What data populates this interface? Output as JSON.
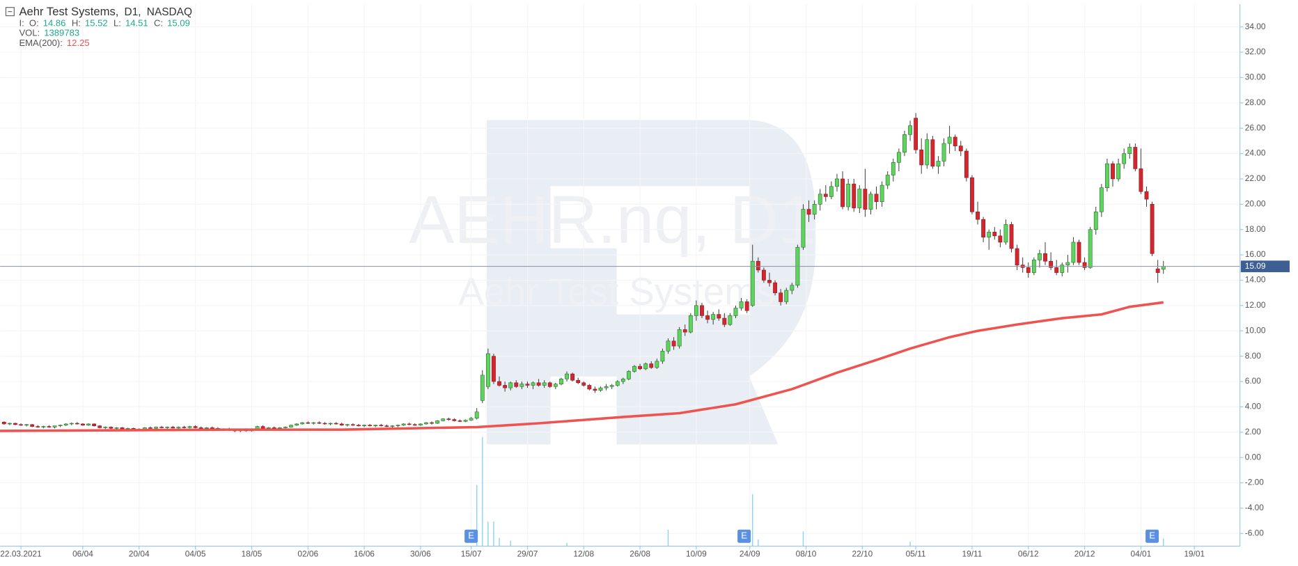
{
  "chart_data": {
    "type": "candlestick",
    "title": "Aehr Test Systems,",
    "timeframe": "D1,",
    "exchange": "NASDAQ",
    "header": {
      "prefix": "I:",
      "labels": [
        "O:",
        "H:",
        "L:",
        "C:"
      ]
    },
    "watermark": [
      "AEHR.nq, D1",
      "Aehr Test Systems"
    ],
    "xlim": [
      -0.7,
      219.6
    ],
    "ylim": [
      -7,
      35.8
    ],
    "yticks": [
      {
        "value": -6,
        "label": "-6.00"
      },
      {
        "value": -4,
        "label": "-4.00"
      },
      {
        "value": -2,
        "label": "-2.00"
      },
      {
        "value": 0,
        "label": "0.00"
      },
      {
        "value": 2,
        "label": "2.00"
      },
      {
        "value": 4,
        "label": "4.00"
      },
      {
        "value": 6,
        "label": "6.00"
      },
      {
        "value": 8,
        "label": "8.00"
      },
      {
        "value": 10,
        "label": "10.00"
      },
      {
        "value": 12,
        "label": "12.00"
      },
      {
        "value": 14,
        "label": "14.00"
      },
      {
        "value": 16,
        "label": "16.00"
      },
      {
        "value": 18,
        "label": "18.00"
      },
      {
        "value": 20,
        "label": "20.00"
      },
      {
        "value": 22,
        "label": "22.00"
      },
      {
        "value": 24,
        "label": "24.00"
      },
      {
        "value": 26,
        "label": "26.00"
      },
      {
        "value": 28,
        "label": "28.00"
      },
      {
        "value": 30,
        "label": "30.00"
      },
      {
        "value": 32,
        "label": "32.00"
      },
      {
        "value": 34,
        "label": "34.00"
      }
    ],
    "xticks": [
      {
        "value": 3,
        "label": "22.03.2021"
      },
      {
        "value": 14,
        "label": "06/04"
      },
      {
        "value": 24,
        "label": "20/04"
      },
      {
        "value": 34,
        "label": "04/05"
      },
      {
        "value": 44,
        "label": "18/05"
      },
      {
        "value": 54,
        "label": "02/06"
      },
      {
        "value": 64,
        "label": "16/06"
      },
      {
        "value": 74,
        "label": "30/06"
      },
      {
        "value": 83,
        "label": "15/07"
      },
      {
        "value": 93,
        "label": "29/07"
      },
      {
        "value": 103,
        "label": "12/08"
      },
      {
        "value": 113,
        "label": "26/08"
      },
      {
        "value": 123,
        "label": "10/09"
      },
      {
        "value": 132.5,
        "label": "24/09"
      },
      {
        "value": 142.5,
        "label": "08/10"
      },
      {
        "value": 152.5,
        "label": "22/10"
      },
      {
        "value": 162,
        "label": "05/11"
      },
      {
        "value": 172,
        "label": "19/11"
      },
      {
        "value": 182,
        "label": "06/12"
      },
      {
        "value": 192,
        "label": "20/12"
      },
      {
        "value": 202,
        "label": "04/01"
      },
      {
        "value": 211.5,
        "label": "19/01"
      }
    ],
    "grid": true,
    "up_color": "#5ed45e",
    "down_color": "#d3262e",
    "price_line_color": "#8a90a0",
    "price_label_color": "#3d5f93",
    "ohlc": [
      [
        2.8,
        2.85,
        2.6,
        2.65
      ],
      [
        2.65,
        2.75,
        2.55,
        2.7
      ],
      [
        2.7,
        2.75,
        2.55,
        2.6
      ],
      [
        2.6,
        2.7,
        2.5,
        2.55
      ],
      [
        2.55,
        2.65,
        2.45,
        2.6
      ],
      [
        2.6,
        2.65,
        2.4,
        2.45
      ],
      [
        2.45,
        2.55,
        2.35,
        2.4
      ],
      [
        2.4,
        2.5,
        2.3,
        2.45
      ],
      [
        2.45,
        2.55,
        2.35,
        2.4
      ],
      [
        2.4,
        2.5,
        2.3,
        2.5
      ],
      [
        2.5,
        2.6,
        2.4,
        2.55
      ],
      [
        2.55,
        2.7,
        2.5,
        2.65
      ],
      [
        2.65,
        2.75,
        2.55,
        2.7
      ],
      [
        2.7,
        2.8,
        2.6,
        2.65
      ],
      [
        2.65,
        2.7,
        2.5,
        2.55
      ],
      [
        2.55,
        2.7,
        2.5,
        2.65
      ],
      [
        2.65,
        2.7,
        2.45,
        2.5
      ],
      [
        2.5,
        2.55,
        2.3,
        2.35
      ],
      [
        2.35,
        2.45,
        2.25,
        2.4
      ],
      [
        2.4,
        2.45,
        2.25,
        2.3
      ],
      [
        2.3,
        2.4,
        2.2,
        2.35
      ],
      [
        2.35,
        2.4,
        2.2,
        2.25
      ],
      [
        2.25,
        2.35,
        2.15,
        2.3
      ],
      [
        2.3,
        2.35,
        2.15,
        2.2
      ],
      [
        2.2,
        2.3,
        2.1,
        2.25
      ],
      [
        2.25,
        2.4,
        2.2,
        2.35
      ],
      [
        2.35,
        2.45,
        2.25,
        2.3
      ],
      [
        2.3,
        2.45,
        2.25,
        2.4
      ],
      [
        2.4,
        2.5,
        2.3,
        2.35
      ],
      [
        2.35,
        2.45,
        2.25,
        2.4
      ],
      [
        2.4,
        2.5,
        2.3,
        2.32
      ],
      [
        2.32,
        2.45,
        2.25,
        2.4
      ],
      [
        2.4,
        2.5,
        2.3,
        2.35
      ],
      [
        2.35,
        2.5,
        2.3,
        2.45
      ],
      [
        2.45,
        2.55,
        2.3,
        2.35
      ],
      [
        2.35,
        2.45,
        2.25,
        2.3
      ],
      [
        2.3,
        2.4,
        2.2,
        2.35
      ],
      [
        2.35,
        2.45,
        2.25,
        2.3
      ],
      [
        2.3,
        2.4,
        2.15,
        2.2
      ],
      [
        2.2,
        2.3,
        2.1,
        2.25
      ],
      [
        2.25,
        2.35,
        2.1,
        2.15
      ],
      [
        2.15,
        2.25,
        2.0,
        2.1
      ],
      [
        2.1,
        2.25,
        2.0,
        2.2
      ],
      [
        2.2,
        2.3,
        2.05,
        2.1
      ],
      [
        2.1,
        2.3,
        2.05,
        2.25
      ],
      [
        2.25,
        2.5,
        2.2,
        2.45
      ],
      [
        2.45,
        2.55,
        2.25,
        2.3
      ],
      [
        2.3,
        2.4,
        2.2,
        2.35
      ],
      [
        2.35,
        2.45,
        2.25,
        2.3
      ],
      [
        2.3,
        2.4,
        2.2,
        2.35
      ],
      [
        2.35,
        2.45,
        2.3,
        2.4
      ],
      [
        2.4,
        2.6,
        2.35,
        2.55
      ],
      [
        2.55,
        2.7,
        2.5,
        2.65
      ],
      [
        2.65,
        2.8,
        2.6,
        2.75
      ],
      [
        2.75,
        2.85,
        2.65,
        2.7
      ],
      [
        2.7,
        2.8,
        2.6,
        2.75
      ],
      [
        2.75,
        2.85,
        2.65,
        2.7
      ],
      [
        2.7,
        2.8,
        2.6,
        2.65
      ],
      [
        2.65,
        2.75,
        2.55,
        2.7
      ],
      [
        2.7,
        2.8,
        2.6,
        2.65
      ],
      [
        2.65,
        2.75,
        2.5,
        2.55
      ],
      [
        2.55,
        2.65,
        2.45,
        2.6
      ],
      [
        2.6,
        2.7,
        2.5,
        2.55
      ],
      [
        2.55,
        2.65,
        2.45,
        2.5
      ],
      [
        2.5,
        2.6,
        2.4,
        2.55
      ],
      [
        2.55,
        2.65,
        2.45,
        2.5
      ],
      [
        2.5,
        2.6,
        2.4,
        2.55
      ],
      [
        2.55,
        2.65,
        2.45,
        2.5
      ],
      [
        2.5,
        2.6,
        2.4,
        2.45
      ],
      [
        2.45,
        2.55,
        2.35,
        2.5
      ],
      [
        2.5,
        2.6,
        2.4,
        2.55
      ],
      [
        2.55,
        2.7,
        2.5,
        2.65
      ],
      [
        2.65,
        2.75,
        2.55,
        2.6
      ],
      [
        2.6,
        2.7,
        2.5,
        2.55
      ],
      [
        2.55,
        2.7,
        2.5,
        2.65
      ],
      [
        2.65,
        2.8,
        2.6,
        2.75
      ],
      [
        2.75,
        2.85,
        2.6,
        2.7
      ],
      [
        2.7,
        2.95,
        2.65,
        2.9
      ],
      [
        2.9,
        3.1,
        2.85,
        3.05
      ],
      [
        3.05,
        3.15,
        2.9,
        3.0
      ],
      [
        3.0,
        3.1,
        2.85,
        2.9
      ],
      [
        2.9,
        3.0,
        2.8,
        2.85
      ],
      [
        2.85,
        3.0,
        2.8,
        2.95
      ],
      [
        2.95,
        3.2,
        2.9,
        3.1
      ],
      [
        3.1,
        3.9,
        3.0,
        3.6
      ],
      [
        4.5,
        6.9,
        4.3,
        6.5
      ],
      [
        5.6,
        8.6,
        5.4,
        8.2
      ],
      [
        8.0,
        8.2,
        5.8,
        6.0
      ],
      [
        6.0,
        6.4,
        5.6,
        5.7
      ],
      [
        5.7,
        6.0,
        5.2,
        5.5
      ],
      [
        5.5,
        6.0,
        5.3,
        5.9
      ],
      [
        5.9,
        6.1,
        5.5,
        5.6
      ],
      [
        5.6,
        6.0,
        5.4,
        5.8
      ],
      [
        5.8,
        6.0,
        5.5,
        5.7
      ],
      [
        5.7,
        6.0,
        5.4,
        5.9
      ],
      [
        5.9,
        6.2,
        5.6,
        5.7
      ],
      [
        5.7,
        6.1,
        5.5,
        5.9
      ],
      [
        5.9,
        6.0,
        5.5,
        5.6
      ],
      [
        5.6,
        5.9,
        5.4,
        5.8
      ],
      [
        5.8,
        6.3,
        5.7,
        6.2
      ],
      [
        6.2,
        6.8,
        6.0,
        6.6
      ],
      [
        6.6,
        6.7,
        6.0,
        6.1
      ],
      [
        6.1,
        6.3,
        5.8,
        5.9
      ],
      [
        5.9,
        6.0,
        5.6,
        5.7
      ],
      [
        5.7,
        5.8,
        5.3,
        5.4
      ],
      [
        5.4,
        5.6,
        5.1,
        5.3
      ],
      [
        5.3,
        5.6,
        5.2,
        5.5
      ],
      [
        5.5,
        5.8,
        5.3,
        5.6
      ],
      [
        5.6,
        5.8,
        5.4,
        5.7
      ],
      [
        5.7,
        6.1,
        5.6,
        6.0
      ],
      [
        6.0,
        6.3,
        5.8,
        6.2
      ],
      [
        6.2,
        6.9,
        6.1,
        6.8
      ],
      [
        6.8,
        7.3,
        6.7,
        7.2
      ],
      [
        7.2,
        7.4,
        6.9,
        7.0
      ],
      [
        7.0,
        7.5,
        6.9,
        7.4
      ],
      [
        7.4,
        7.6,
        7.0,
        7.1
      ],
      [
        7.1,
        7.8,
        7.0,
        7.6
      ],
      [
        7.6,
        8.6,
        7.4,
        8.4
      ],
      [
        8.4,
        9.4,
        8.2,
        9.2
      ],
      [
        9.2,
        9.5,
        8.5,
        8.8
      ],
      [
        8.8,
        10.3,
        8.6,
        10.1
      ],
      [
        10.1,
        10.5,
        9.6,
        9.9
      ],
      [
        9.9,
        11.4,
        9.8,
        11.2
      ],
      [
        11.2,
        12.4,
        10.8,
        12.0
      ],
      [
        12.0,
        12.2,
        11.0,
        11.2
      ],
      [
        11.2,
        11.6,
        10.6,
        10.9
      ],
      [
        10.9,
        11.5,
        10.5,
        11.3
      ],
      [
        11.3,
        11.7,
        10.8,
        11.0
      ],
      [
        11.0,
        11.4,
        10.3,
        10.5
      ],
      [
        10.5,
        11.4,
        10.4,
        11.2
      ],
      [
        11.2,
        12.0,
        11.0,
        11.8
      ],
      [
        11.8,
        12.6,
        11.6,
        12.3
      ],
      [
        12.3,
        12.5,
        11.4,
        11.6
      ],
      [
        12.0,
        16.8,
        11.9,
        15.5
      ],
      [
        15.5,
        15.8,
        14.6,
        14.8
      ],
      [
        14.8,
        15.0,
        13.8,
        14.0
      ],
      [
        14.0,
        14.6,
        13.5,
        13.8
      ],
      [
        13.8,
        14.0,
        12.8,
        13.0
      ],
      [
        13.0,
        13.3,
        12.0,
        12.3
      ],
      [
        12.3,
        13.4,
        12.1,
        13.2
      ],
      [
        13.2,
        13.8,
        12.9,
        13.6
      ],
      [
        13.6,
        16.8,
        13.4,
        16.6
      ],
      [
        16.6,
        20.0,
        16.4,
        19.6
      ],
      [
        19.6,
        20.3,
        18.6,
        19.2
      ],
      [
        19.2,
        20.3,
        18.8,
        20.0
      ],
      [
        20.0,
        21.2,
        19.5,
        20.8
      ],
      [
        20.8,
        21.5,
        20.2,
        20.6
      ],
      [
        20.6,
        21.8,
        20.4,
        21.4
      ],
      [
        21.4,
        22.4,
        21.0,
        22.0
      ],
      [
        22.0,
        22.6,
        19.6,
        19.8
      ],
      [
        19.8,
        22.0,
        19.5,
        21.6
      ],
      [
        21.6,
        22.0,
        19.4,
        19.7
      ],
      [
        19.7,
        21.5,
        19.3,
        21.2
      ],
      [
        21.2,
        22.8,
        19.0,
        19.6
      ],
      [
        19.6,
        21.0,
        19.2,
        20.8
      ],
      [
        20.8,
        21.4,
        19.6,
        20.2
      ],
      [
        20.2,
        21.8,
        19.8,
        21.5
      ],
      [
        21.5,
        22.6,
        21.2,
        22.3
      ],
      [
        22.3,
        23.6,
        21.8,
        23.3
      ],
      [
        23.3,
        24.4,
        22.6,
        24.1
      ],
      [
        24.1,
        25.8,
        23.8,
        25.5
      ],
      [
        25.5,
        26.6,
        25.0,
        26.2
      ],
      [
        26.8,
        27.2,
        24.0,
        24.3
      ],
      [
        24.3,
        25.2,
        22.4,
        23.1
      ],
      [
        23.1,
        25.6,
        22.8,
        25.1
      ],
      [
        25.1,
        25.4,
        22.8,
        23.0
      ],
      [
        23.0,
        23.8,
        22.4,
        23.4
      ],
      [
        23.4,
        25.2,
        23.0,
        24.8
      ],
      [
        24.8,
        26.2,
        24.0,
        25.3
      ],
      [
        25.3,
        25.5,
        24.2,
        24.6
      ],
      [
        24.6,
        25.0,
        23.8,
        24.2
      ],
      [
        24.2,
        24.4,
        21.8,
        22.1
      ],
      [
        22.1,
        22.3,
        19.2,
        19.4
      ],
      [
        19.4,
        20.2,
        18.4,
        18.8
      ],
      [
        18.8,
        19.0,
        17.0,
        17.4
      ],
      [
        17.4,
        18.0,
        16.4,
        17.8
      ],
      [
        17.8,
        18.2,
        17.2,
        17.5
      ],
      [
        17.5,
        18.0,
        16.6,
        17.0
      ],
      [
        17.0,
        18.8,
        16.8,
        18.4
      ],
      [
        18.4,
        18.6,
        16.2,
        16.5
      ],
      [
        16.5,
        16.8,
        14.8,
        15.2
      ],
      [
        15.2,
        15.8,
        14.6,
        15.0
      ],
      [
        15.0,
        15.4,
        14.2,
        14.6
      ],
      [
        14.6,
        15.8,
        14.4,
        15.6
      ],
      [
        15.6,
        16.4,
        15.0,
        16.1
      ],
      [
        16.1,
        17.0,
        15.2,
        15.5
      ],
      [
        15.5,
        16.2,
        14.8,
        15.0
      ],
      [
        15.0,
        15.6,
        14.4,
        14.6
      ],
      [
        14.6,
        15.4,
        14.3,
        15.2
      ],
      [
        15.2,
        16.0,
        14.6,
        15.4
      ],
      [
        15.4,
        17.4,
        15.2,
        17.0
      ],
      [
        17.0,
        17.2,
        15.2,
        15.4
      ],
      [
        15.4,
        15.8,
        14.8,
        15.0
      ],
      [
        15.0,
        18.2,
        14.9,
        18.0
      ],
      [
        18.0,
        19.8,
        17.6,
        19.4
      ],
      [
        19.4,
        21.6,
        19.0,
        21.3
      ],
      [
        21.3,
        23.6,
        21.0,
        23.2
      ],
      [
        23.2,
        23.4,
        21.4,
        22.0
      ],
      [
        22.0,
        23.6,
        21.8,
        23.2
      ],
      [
        23.2,
        24.4,
        22.8,
        24.0
      ],
      [
        24.0,
        24.8,
        23.6,
        24.5
      ],
      [
        24.5,
        24.8,
        22.6,
        22.8
      ],
      [
        22.8,
        24.4,
        20.8,
        21.0
      ],
      [
        21.0,
        21.4,
        19.8,
        20.4
      ],
      [
        20.0,
        20.2,
        15.9,
        16.1
      ],
      [
        14.9,
        15.6,
        13.8,
        14.6
      ],
      [
        14.86,
        15.52,
        14.51,
        15.09
      ]
    ],
    "ema": {
      "name": "EMA(200):",
      "color": "#ef5350",
      "x": [
        -1,
        20,
        40,
        60,
        84,
        95,
        110,
        120,
        130,
        140,
        148,
        155,
        161,
        168,
        173,
        180,
        188,
        195,
        200,
        206
      ],
      "values": [
        2.1,
        2.15,
        2.2,
        2.2,
        2.4,
        2.7,
        3.2,
        3.5,
        4.2,
        5.4,
        6.7,
        7.7,
        8.6,
        9.5,
        10.0,
        10.5,
        11.0,
        11.3,
        11.9,
        12.25
      ]
    },
    "volume": {
      "name": "VOL:",
      "color": "#8fd3ef",
      "x": [
        84,
        85,
        86,
        87,
        88,
        90,
        100,
        118,
        133,
        134,
        142,
        161,
        206
      ],
      "values": [
        11200000,
        20000000,
        4500000,
        4500000,
        1500000,
        1000000,
        600000,
        3000000,
        9500000,
        1200000,
        2700000,
        800000,
        1389783
      ]
    },
    "events": [
      {
        "x": 83,
        "label": "E"
      },
      {
        "x": 131.5,
        "label": "E"
      },
      {
        "x": 204,
        "label": "E"
      }
    ]
  }
}
